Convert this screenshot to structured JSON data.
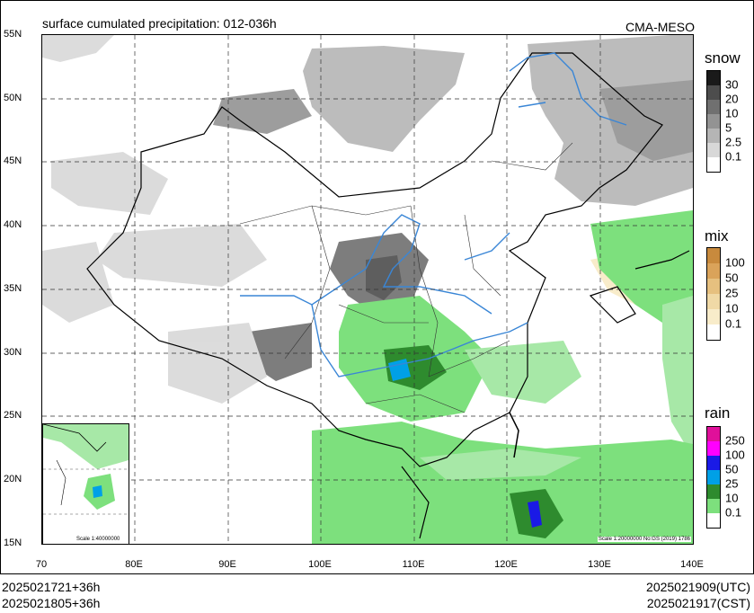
{
  "title": "surface cumulated precipitation: 012-036h",
  "model": "CMA-MESO",
  "lat_labels": [
    "55N",
    "50N",
    "45N",
    "40N",
    "35N",
    "30N",
    "25N",
    "20N",
    "15N"
  ],
  "lon_labels": [
    "70",
    "80E",
    "90E",
    "100E",
    "110E",
    "120E",
    "130E",
    "140E"
  ],
  "legends": {
    "snow": {
      "title": "snow",
      "levels": [
        "30",
        "20",
        "10",
        "5",
        "2.5",
        "0.1"
      ],
      "colors": [
        "#1a1a1a",
        "#4d4d4d",
        "#707070",
        "#939393",
        "#b5b5b5",
        "#d8d8d8",
        "#ffffff"
      ]
    },
    "mix": {
      "title": "mix",
      "levels": [
        "100",
        "50",
        "25",
        "10",
        "0.1"
      ],
      "colors": [
        "#c88a3d",
        "#daa35a",
        "#e6c07f",
        "#f0d9a6",
        "#f8ecca",
        "#ffffff"
      ]
    },
    "rain": {
      "title": "rain",
      "levels": [
        "250",
        "100",
        "50",
        "25",
        "10",
        "0.1"
      ],
      "colors": [
        "#e0109a",
        "#ff00ff",
        "#1a1ae6",
        "#00a0e6",
        "#2e8b2e",
        "#7de07d",
        "#ffffff"
      ]
    }
  },
  "scale_main": "Scale 1:20000000 No:GS (2019) 1786",
  "scale_inset": "Scale 1:40000000",
  "init_time_utc": "2025021721+36h",
  "init_time_cst": "2025021805+36h",
  "valid_time_utc": "2025021909(UTC)",
  "valid_time_cst": "2025021917(CST)"
}
